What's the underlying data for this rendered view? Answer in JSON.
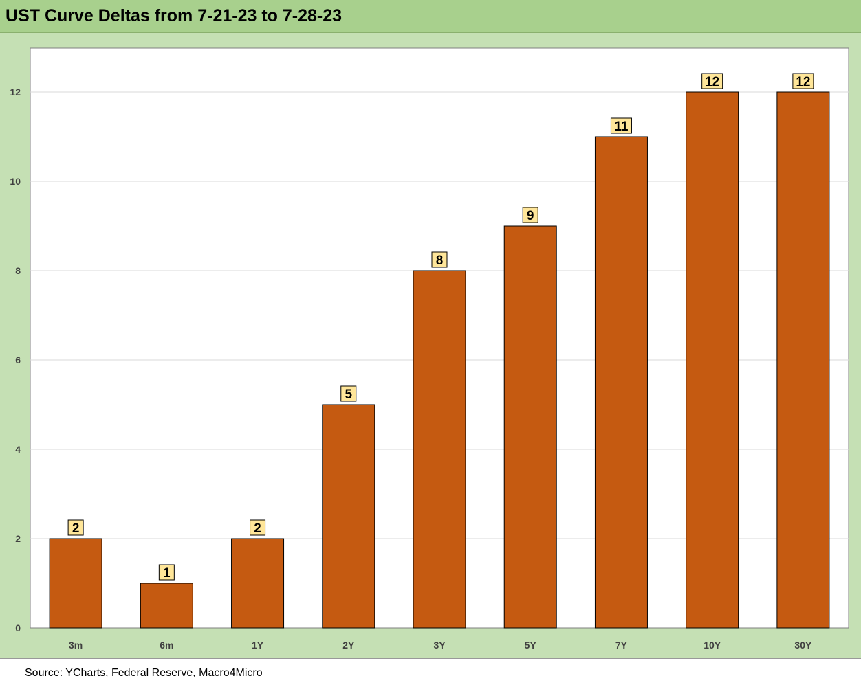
{
  "title": "UST Curve Deltas from 7-21-23 to 7-28-23",
  "source": "Source: YCharts, Federal Reserve, Macro4Micro",
  "colors": {
    "header_bg": "#a8d08d",
    "frame_bg": "#c5e0b4",
    "bar_fill": "#c55a11",
    "label_bg": "#ffe699"
  },
  "chart_data": {
    "type": "bar",
    "categories": [
      "3m",
      "6m",
      "1Y",
      "2Y",
      "3Y",
      "5Y",
      "7Y",
      "10Y",
      "30Y"
    ],
    "values": [
      2,
      1,
      2,
      5,
      8,
      9,
      11,
      12,
      12
    ],
    "data_labels": [
      "2",
      "1",
      "2",
      "5",
      "8",
      "9",
      "11",
      "12",
      "12"
    ],
    "yticks": [
      "0",
      "2",
      "4",
      "6",
      "8",
      "10",
      "12"
    ],
    "ylim": [
      0,
      13
    ],
    "grid": true,
    "legend": "none"
  }
}
